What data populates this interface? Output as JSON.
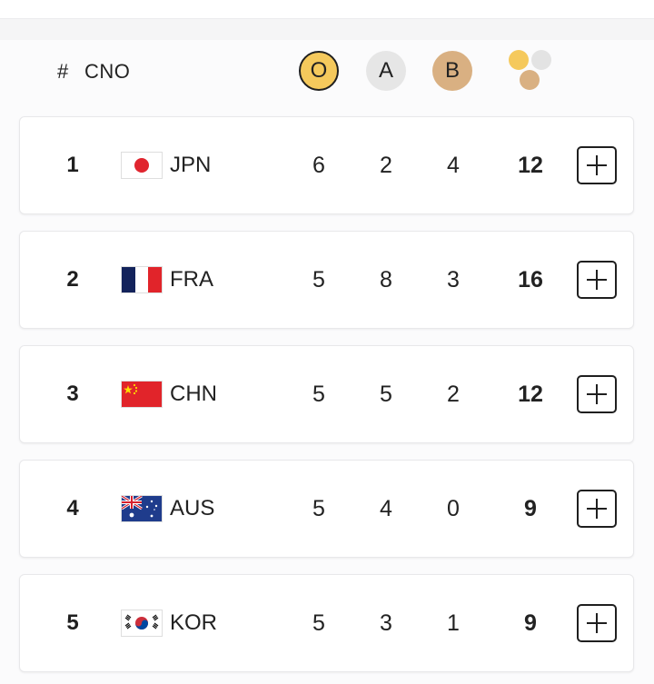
{
  "header": {
    "rank_label": "#",
    "noc_label": "CNO",
    "gold_label": "O",
    "silver_label": "A",
    "bronze_label": "B"
  },
  "colors": {
    "gold": "#f5c95c",
    "silver": "#e6e6e6",
    "bronze": "#d9b082"
  },
  "rows": [
    {
      "rank": "1",
      "code": "JPN",
      "flag": "japan-flag-icon",
      "gold": "6",
      "silver": "2",
      "bronze": "4",
      "total": "12"
    },
    {
      "rank": "2",
      "code": "FRA",
      "flag": "france-flag-icon",
      "gold": "5",
      "silver": "8",
      "bronze": "3",
      "total": "16"
    },
    {
      "rank": "3",
      "code": "CHN",
      "flag": "china-flag-icon",
      "gold": "5",
      "silver": "5",
      "bronze": "2",
      "total": "12"
    },
    {
      "rank": "4",
      "code": "AUS",
      "flag": "australia-flag-icon",
      "gold": "5",
      "silver": "4",
      "bronze": "0",
      "total": "9"
    },
    {
      "rank": "5",
      "code": "KOR",
      "flag": "korea-flag-icon",
      "gold": "5",
      "silver": "3",
      "bronze": "1",
      "total": "9"
    }
  ]
}
